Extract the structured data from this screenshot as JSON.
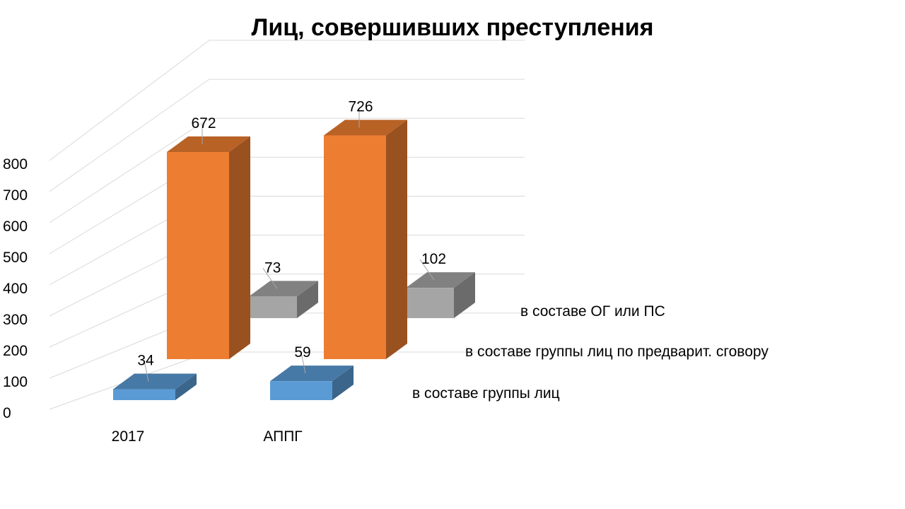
{
  "chart_data": {
    "type": "bar",
    "title": "Лиц, совершивших преступления",
    "categories": [
      "2017",
      "АППГ"
    ],
    "series": [
      {
        "name": "в составе группы лиц",
        "values": [
          34,
          59
        ],
        "color": "#5b9bd5"
      },
      {
        "name": "в составе группы лиц по предварит. сговору",
        "values": [
          672,
          726
        ],
        "color": "#ed7d31"
      },
      {
        "name": "в составе ОГ или ПС",
        "values": [
          73,
          102
        ],
        "color": "#a5a5a5"
      }
    ],
    "y_ticks": [
      "0",
      "100",
      "200",
      "300",
      "400",
      "500",
      "600",
      "700",
      "800"
    ],
    "ylim": [
      0,
      800
    ],
    "xlabel": "",
    "ylabel": "",
    "grid": true,
    "legend": "depth-axis series labels on right"
  }
}
